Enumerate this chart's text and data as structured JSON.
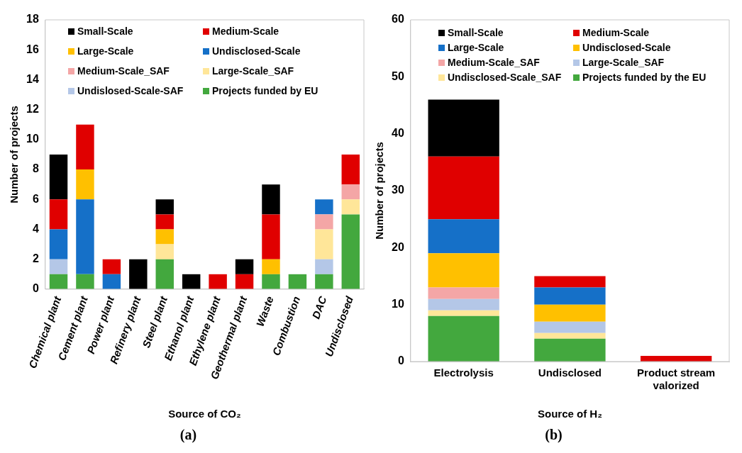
{
  "chart_data": [
    {
      "type": "bar",
      "stacked": true,
      "xlabel": "Source of CO₂",
      "ylabel": "Number of projects",
      "categories": [
        "Chemical plant",
        "Cement plant",
        "Power plant",
        "Refinery plant",
        "Steel plant",
        "Ethanol plant",
        "Ethylene plant",
        "Geothermal plant",
        "Waste",
        "Combustion",
        "DAC",
        "Undisclosed"
      ],
      "ylim": [
        0,
        18
      ],
      "yticks": [
        0,
        2,
        4,
        6,
        8,
        10,
        12,
        14,
        16,
        18
      ],
      "grid": false,
      "legend": "top",
      "annotations": [
        "(a)"
      ],
      "series": [
        {
          "name": "Projects funded by EU",
          "color": "#43a83e",
          "values": [
            1,
            1,
            0,
            0,
            2,
            0,
            0,
            0,
            1,
            1,
            1,
            5
          ]
        },
        {
          "name": "Undislosed-Scale-SAF",
          "color": "#b4c7e7",
          "values": [
            1,
            0,
            0,
            0,
            0,
            0,
            0,
            0,
            0,
            0,
            1,
            0
          ]
        },
        {
          "name": "Large-Scale_SAF",
          "color": "#ffe699",
          "values": [
            0,
            0,
            0,
            0,
            1,
            0,
            0,
            0,
            0,
            0,
            2,
            1
          ]
        },
        {
          "name": "Medium-Scale_SAF",
          "color": "#f4a6a6",
          "values": [
            0,
            0,
            0,
            0,
            0,
            0,
            0,
            0,
            0,
            0,
            1,
            1
          ]
        },
        {
          "name": "Undisclosed-Scale",
          "color": "#1570c8",
          "values": [
            2,
            5,
            1,
            0,
            0,
            0,
            0,
            0,
            0,
            0,
            1,
            0
          ]
        },
        {
          "name": "Large-Scale",
          "color": "#ffc000",
          "values": [
            0,
            2,
            0,
            0,
            1,
            0,
            0,
            0,
            1,
            0,
            0,
            0
          ]
        },
        {
          "name": "Medium-Scale",
          "color": "#e00000",
          "values": [
            2,
            3,
            1,
            0,
            1,
            0,
            1,
            1,
            3,
            0,
            0,
            2
          ]
        },
        {
          "name": "Small-Scale",
          "color": "#000000",
          "values": [
            3,
            0,
            0,
            2,
            1,
            1,
            0,
            1,
            2,
            0,
            0,
            0
          ]
        }
      ]
    },
    {
      "type": "bar",
      "stacked": true,
      "xlabel": "Source of H₂",
      "ylabel": "Number of projects",
      "categories": [
        "Electrolysis",
        "Undisclosed",
        "Product stream valorized"
      ],
      "ylim": [
        0,
        60
      ],
      "yticks": [
        0,
        10,
        20,
        30,
        40,
        50,
        60
      ],
      "grid": false,
      "legend": "top",
      "annotations": [
        "(b)"
      ],
      "series": [
        {
          "name": "Projects funded by the EU",
          "color": "#43a83e",
          "values": [
            8,
            4,
            0
          ]
        },
        {
          "name": "Undisclosed-Scale_SAF",
          "color": "#ffe699",
          "values": [
            1,
            1,
            0
          ]
        },
        {
          "name": "Large-Scale_SAF",
          "color": "#b4c7e7",
          "values": [
            2,
            2,
            0
          ]
        },
        {
          "name": "Medium-Scale_SAF",
          "color": "#f4a6a6",
          "values": [
            2,
            0,
            0
          ]
        },
        {
          "name": "Undisclosed-Scale",
          "color": "#ffc000",
          "values": [
            6,
            3,
            0
          ]
        },
        {
          "name": "Large-Scale",
          "color": "#1570c8",
          "values": [
            6,
            3,
            0
          ]
        },
        {
          "name": "Medium-Scale",
          "color": "#e00000",
          "values": [
            11,
            2,
            1
          ]
        },
        {
          "name": "Small-Scale",
          "color": "#000000",
          "values": [
            10,
            0,
            0
          ]
        }
      ]
    }
  ]
}
